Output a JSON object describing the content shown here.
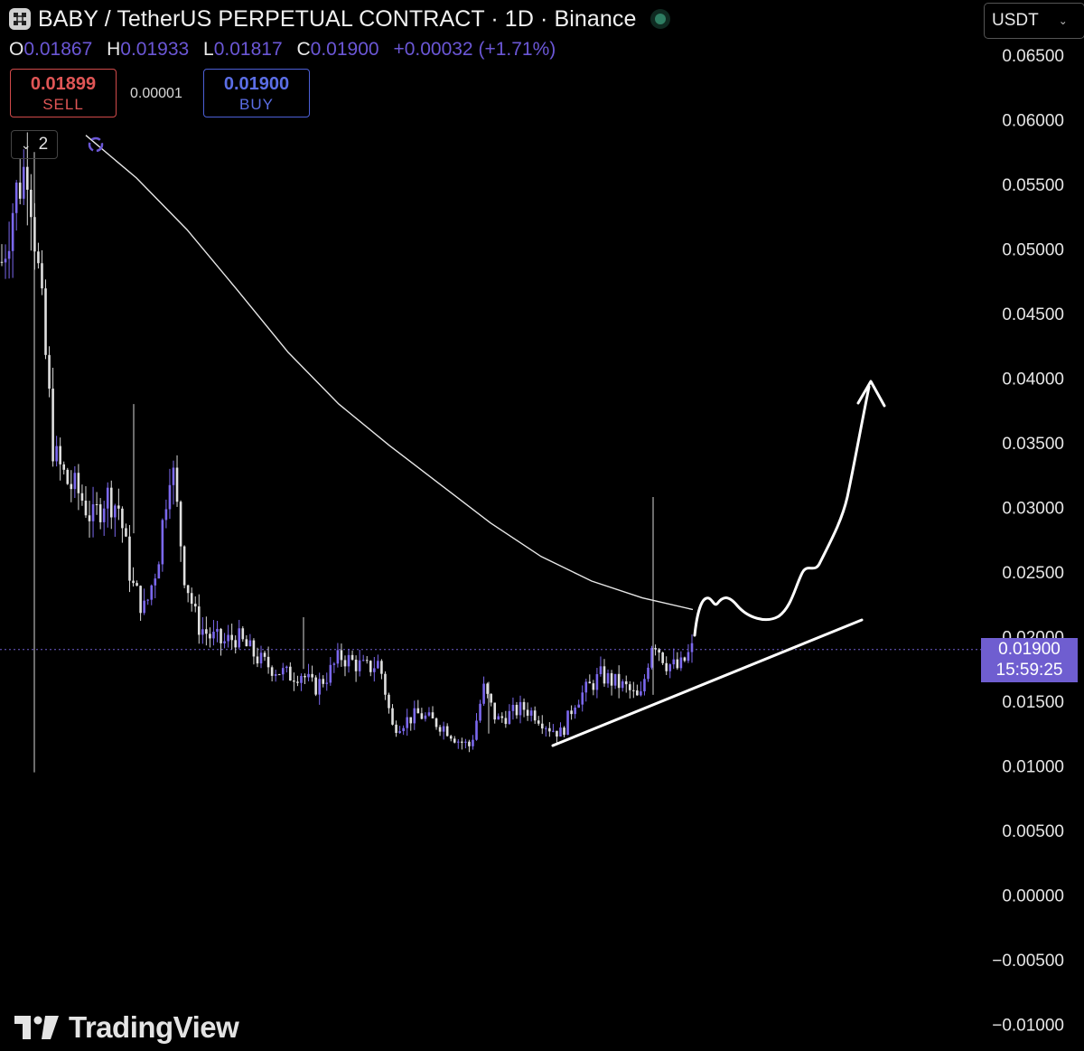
{
  "header": {
    "title": "BABY / TetherUS PERPETUAL CONTRACT · 1D · Binance",
    "logo_icon": "exchange-logo-icon",
    "status": "market-open"
  },
  "ohlc": {
    "open_label": "O",
    "open": "0.01867",
    "high_label": "H",
    "high": "0.01933",
    "low_label": "L",
    "low": "0.01817",
    "close_label": "C",
    "close": "0.01900",
    "change": "+0.00032 (+1.71%)"
  },
  "trade": {
    "sell_price": "0.01899",
    "sell_label": "SELL",
    "spread": "0.00001",
    "buy_price": "0.01900",
    "buy_label": "BUY"
  },
  "indicators": {
    "collapse_count": "2"
  },
  "currency": {
    "selected": "USDT"
  },
  "price_tag": {
    "price": "0.01900",
    "countdown": "15:59:25"
  },
  "branding": {
    "name": "TradingView"
  },
  "colors": {
    "background": "#000000",
    "candle": "#7b68ee",
    "accent": "#6f5ed0",
    "sell": "#e05656",
    "buy": "#5b6ee6"
  },
  "chart_data": {
    "type": "candlestick",
    "y_axis_labels": [
      "0.06500",
      "0.06000",
      "0.05500",
      "0.05000",
      "0.04500",
      "0.04000",
      "0.03500",
      "0.03000",
      "0.02500",
      "0.02000",
      "0.01500",
      "0.01000",
      "0.00500",
      "0.00000",
      "−0.00500",
      "−0.01000"
    ],
    "ylim": [
      -0.0105,
      0.0665
    ],
    "last_price": 0.019,
    "close_path": [
      0.049,
      0.054,
      0.057,
      0.046,
      0.034,
      0.032,
      0.031,
      0.029,
      0.031,
      0.03,
      0.024,
      0.022,
      0.026,
      0.034,
      0.025,
      0.021,
      0.02,
      0.0195,
      0.02,
      0.019,
      0.018,
      0.0175,
      0.017,
      0.0172,
      0.016,
      0.017,
      0.0185,
      0.018,
      0.0175,
      0.018,
      0.013,
      0.0135,
      0.014,
      0.0135,
      0.013,
      0.012,
      0.0115,
      0.016,
      0.0135,
      0.014,
      0.0145,
      0.014,
      0.013,
      0.0125,
      0.015,
      0.016,
      0.017,
      0.0165,
      0.016,
      0.015,
      0.02,
      0.018,
      0.0175,
      0.019
    ],
    "moving_average": [
      0.0588,
      0.0555,
      0.0515,
      0.0468,
      0.042,
      0.038,
      0.0348,
      0.0318,
      0.0288,
      0.0262,
      0.0243,
      0.023,
      0.0221
    ],
    "annotations": [
      "ascending support trendline",
      "projected upward path arrow"
    ]
  }
}
